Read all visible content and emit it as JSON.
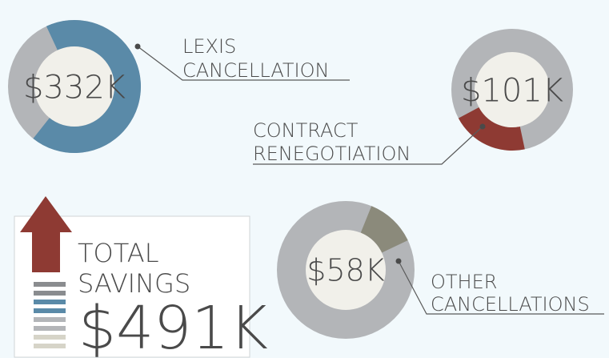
{
  "chart_data": {
    "type": "donut",
    "items": [
      {
        "label": [
          "LEXIS",
          "CANCELLATION"
        ],
        "value": 332,
        "value_label": "$332K",
        "color": "#5a8aa8"
      },
      {
        "label": [
          "CONTRACT",
          "RENEGOTIATION"
        ],
        "value": 101,
        "value_label": "$101K",
        "color": "#8e3a33"
      },
      {
        "label": [
          "OTHER",
          "CANCELLATIONS"
        ],
        "value": 58,
        "value_label": "$58K",
        "color": "#8b8a7b"
      }
    ],
    "total": {
      "label": [
        "TOTAL",
        "SAVINGS"
      ],
      "value": 491,
      "value_label": "$491K"
    }
  }
}
